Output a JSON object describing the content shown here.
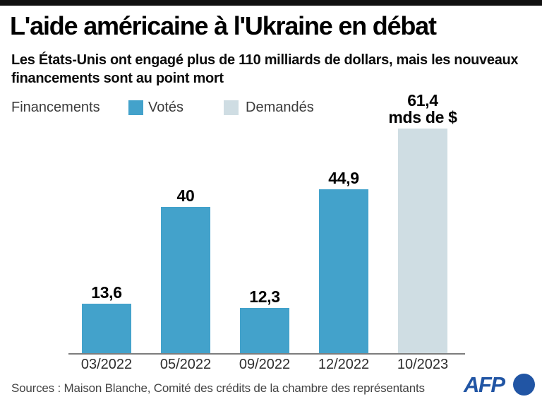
{
  "header": {
    "title": "L'aide américaine à l'Ukraine en débat",
    "subtitle": "Les États-Unis ont engagé plus de 110 milliards de dollars, mais les nouveaux\nfinancements sont au point mort"
  },
  "legend": {
    "label": "Financements",
    "items": [
      {
        "label": "Votés",
        "color": "#43a2cb"
      },
      {
        "label": "Demandés",
        "color": "#cfdde3"
      }
    ]
  },
  "chart_data": {
    "type": "bar",
    "title": "L'aide américaine à l'Ukraine en débat",
    "unit": "mds de $",
    "categories": [
      "03/2022",
      "05/2022",
      "09/2022",
      "12/2022",
      "10/2023"
    ],
    "series": [
      {
        "name": "Votés",
        "color": "#43a2cb",
        "values": [
          13.6,
          40,
          12.3,
          44.9,
          null
        ]
      },
      {
        "name": "Demandés",
        "color": "#cfdde3",
        "values": [
          null,
          null,
          null,
          null,
          61.4
        ]
      }
    ],
    "bars": [
      {
        "category": "03/2022",
        "value": 13.6,
        "label": "13,6",
        "series": "Votés"
      },
      {
        "category": "05/2022",
        "value": 40,
        "label": "40",
        "series": "Votés"
      },
      {
        "category": "09/2022",
        "value": 12.3,
        "label": "12,3",
        "series": "Votés"
      },
      {
        "category": "12/2022",
        "value": 44.9,
        "label": "44,9",
        "series": "Votés"
      },
      {
        "category": "10/2023",
        "value": 61.4,
        "label": "61,4",
        "label_suffix": "mds de $",
        "series": "Demandés"
      }
    ],
    "ylim": [
      0,
      65
    ],
    "grid": false,
    "legend_position": "top-left"
  },
  "footer": {
    "sources": "Sources : Maison Blanche, Comité des crédits de la chambre des représentants",
    "logo_text": "AFP"
  },
  "colors": {
    "top_bar": "#111111",
    "axis_line": "#7d7d7d",
    "afp_blue": "#2155a4"
  }
}
